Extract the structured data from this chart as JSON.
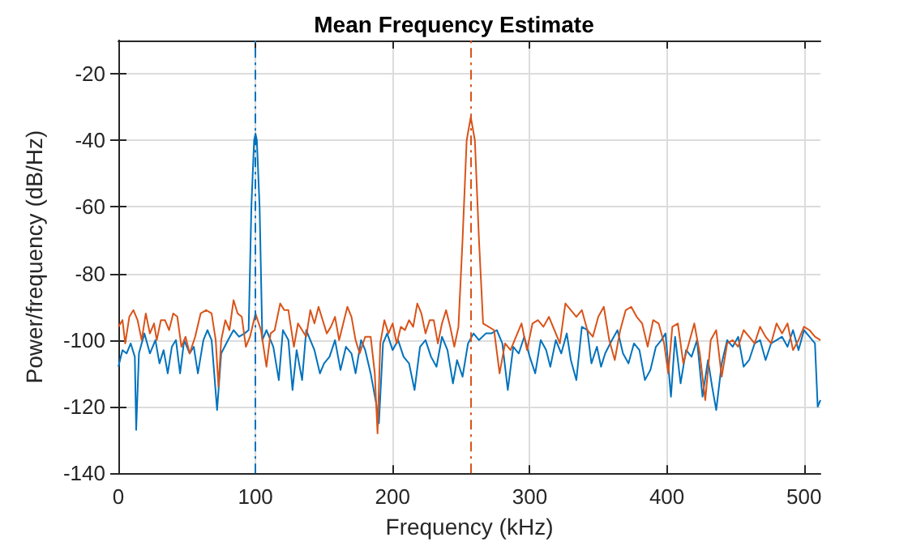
{
  "chart_data": {
    "type": "line",
    "title": "Mean Frequency Estimate",
    "xlabel": "Frequency (kHz)",
    "ylabel": "Power/frequency (dB/Hz)",
    "xlim": [
      0,
      512
    ],
    "xticks": [
      0,
      100,
      200,
      300,
      400,
      500
    ],
    "ylim": [
      -140,
      -10
    ],
    "yticks": [
      -140,
      -120,
      -100,
      -80,
      -60,
      -40,
      -20
    ],
    "grid": true,
    "marker": "none",
    "line_style": "solid",
    "series": [
      {
        "color": "#0072bd",
        "x": [
          0,
          3,
          6,
          9,
          12,
          13,
          15,
          19,
          23,
          27,
          30,
          33,
          36,
          39,
          42,
          45,
          48,
          52,
          55,
          58,
          62,
          65,
          68,
          72,
          75,
          80,
          84,
          88,
          92,
          95,
          97,
          99,
          100,
          101,
          103,
          105,
          108,
          111,
          113,
          117,
          120,
          124,
          127,
          130,
          134,
          137,
          140,
          143,
          147,
          150,
          154,
          158,
          162,
          166,
          170,
          173,
          177,
          180,
          184,
          188,
          190,
          193,
          196,
          200,
          204,
          208,
          212,
          216,
          220,
          224,
          228,
          232,
          236,
          240,
          244,
          247,
          251,
          255,
          259,
          263,
          268,
          272,
          276,
          280,
          284,
          288,
          292,
          296,
          300,
          304,
          308,
          312,
          315,
          319,
          323,
          327,
          330,
          334,
          338,
          342,
          345,
          349,
          352,
          355,
          360,
          364,
          368,
          372,
          376,
          380,
          384,
          388,
          392,
          396,
          399,
          403,
          406,
          410,
          414,
          418,
          422,
          426,
          430,
          433,
          436,
          440,
          444,
          448,
          452,
          456,
          460,
          464,
          468,
          472,
          476,
          480,
          484,
          488,
          492,
          496,
          500,
          504,
          508,
          510,
          512
        ],
        "values": [
          -108,
          -103,
          -104,
          -101,
          -105,
          -127,
          -104,
          -98,
          -104,
          -100,
          -107,
          -103,
          -110,
          -102,
          -100,
          -110,
          -100,
          -104,
          -102,
          -110,
          -100,
          -97,
          -100,
          -121,
          -104,
          -100,
          -97,
          -99,
          -98,
          -97,
          -60,
          -40,
          -38,
          -40,
          -60,
          -100,
          -97,
          -100,
          -102,
          -112,
          -97,
          -100,
          -115,
          -103,
          -112,
          -97,
          -100,
          -103,
          -110,
          -107,
          -105,
          -100,
          -109,
          -102,
          -104,
          -110,
          -100,
          -103,
          -110,
          -119,
          -125,
          -101,
          -98,
          -103,
          -100,
          -105,
          -107,
          -115,
          -102,
          -100,
          -105,
          -108,
          -99,
          -103,
          -113,
          -106,
          -111,
          -101,
          -98,
          -100,
          -98,
          -98,
          -97,
          -101,
          -115,
          -102,
          -104,
          -99,
          -105,
          -110,
          -100,
          -103,
          -108,
          -100,
          -104,
          -98,
          -106,
          -112,
          -96,
          -97,
          -107,
          -102,
          -108,
          -104,
          -100,
          -97,
          -104,
          -107,
          -101,
          -103,
          -112,
          -109,
          -102,
          -100,
          -98,
          -117,
          -99,
          -113,
          -103,
          -105,
          -100,
          -117,
          -106,
          -114,
          -121,
          -107,
          -100,
          -102,
          -99,
          -108,
          -106,
          -101,
          -100,
          -106,
          -101,
          -100,
          -99,
          -102,
          -97,
          -103,
          -97,
          -99,
          -101,
          -120,
          -118
        ]
      },
      {
        "color": "#d95319",
        "x": [
          0,
          3,
          5,
          8,
          11,
          14,
          17,
          20,
          23,
          26,
          28,
          31,
          34,
          37,
          40,
          43,
          46,
          49,
          52,
          56,
          60,
          64,
          68,
          71,
          73,
          75,
          78,
          81,
          84,
          87,
          90,
          93,
          96,
          100,
          104,
          108,
          111,
          114,
          118,
          121,
          124,
          128,
          131,
          134,
          137,
          140,
          143,
          146,
          149,
          152,
          155,
          158,
          161,
          164,
          167,
          170,
          173,
          176,
          180,
          184,
          187,
          189,
          191,
          194,
          197,
          200,
          203,
          206,
          209,
          212,
          215,
          218,
          221,
          224,
          227,
          230,
          233,
          236,
          239,
          242,
          245,
          248,
          251,
          254,
          257,
          260,
          263,
          266,
          270,
          274,
          278,
          282,
          286,
          290,
          294,
          298,
          302,
          306,
          310,
          314,
          318,
          322,
          326,
          330,
          334,
          338,
          342,
          346,
          350,
          354,
          358,
          362,
          366,
          370,
          374,
          378,
          382,
          386,
          390,
          394,
          398,
          401,
          404,
          408,
          412,
          416,
          420,
          424,
          428,
          432,
          436,
          440,
          444,
          448,
          452,
          456,
          460,
          464,
          468,
          472,
          476,
          480,
          484,
          488,
          492,
          496,
          500,
          504,
          508,
          512
        ],
        "values": [
          -96,
          -94,
          -101,
          -93,
          -91,
          -94,
          -100,
          -92,
          -98,
          -95,
          -100,
          -94,
          -94,
          -97,
          -92,
          -93,
          -102,
          -99,
          -104,
          -99,
          -92,
          -91,
          -92,
          -100,
          -114,
          -100,
          -94,
          -97,
          -88,
          -92,
          -93,
          -102,
          -99,
          -92,
          -97,
          -108,
          -98,
          -97,
          -89,
          -91,
          -91,
          -102,
          -95,
          -97,
          -99,
          -91,
          -95,
          -90,
          -94,
          -98,
          -96,
          -93,
          -100,
          -95,
          -90,
          -93,
          -100,
          -104,
          -99,
          -99,
          -110,
          -128,
          -101,
          -94,
          -98,
          -95,
          -101,
          -96,
          -97,
          -94,
          -96,
          -89,
          -92,
          -98,
          -94,
          -94,
          -101,
          -95,
          -91,
          -96,
          -102,
          -96,
          -70,
          -40,
          -33,
          -40,
          -70,
          -95,
          -96,
          -97,
          -110,
          -101,
          -103,
          -99,
          -95,
          -103,
          -95,
          -94,
          -96,
          -93,
          -97,
          -101,
          -89,
          -91,
          -93,
          -91,
          -97,
          -99,
          -93,
          -90,
          -100,
          -106,
          -97,
          -91,
          -90,
          -93,
          -95,
          -102,
          -94,
          -95,
          -101,
          -110,
          -96,
          -95,
          -107,
          -101,
          -95,
          -104,
          -118,
          -100,
          -97,
          -111,
          -101,
          -100,
          -102,
          -97,
          -99,
          -101,
          -96,
          -99,
          -101,
          -95,
          -98,
          -95,
          -103,
          -100,
          -96,
          -97,
          -99,
          -100
        ]
      }
    ],
    "ref_lines": [
      {
        "axis": "x",
        "value": 100,
        "color": "#0072bd",
        "line_style": "dashed"
      },
      {
        "axis": "x",
        "value": 257,
        "color": "#d95319",
        "line_style": "dashed"
      }
    ]
  }
}
